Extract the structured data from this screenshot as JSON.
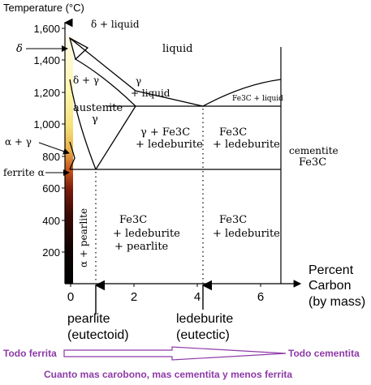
{
  "diagram": {
    "y_axis_title": "Temperature (°C)",
    "x_axis_title_lines": [
      "Percent",
      "Carbon",
      "(by mass)"
    ],
    "y_ticks": [
      "1,600",
      "1,400",
      "1,200",
      "1,000",
      "800",
      "600",
      "400",
      "200"
    ],
    "x_ticks": [
      "0",
      "2",
      "4",
      "6"
    ],
    "left_labels": {
      "delta": "δ",
      "alpha_gamma": "α + γ",
      "ferrite": "ferrite α"
    },
    "phase_labels": {
      "delta_liquid": "δ + liquid",
      "delta_gamma": "δ + γ",
      "liquid": "liquid",
      "gamma_liquid_1": "γ",
      "gamma_liquid_2": "+ liquid",
      "fe3c_liquid": "Fe3C + liquid",
      "austenite_1": "austenite",
      "austenite_2": "γ",
      "gamma_fe3c_1": "γ + Fe3C",
      "gamma_fe3c_2": "+ ledeburite",
      "fe3c_ledeb_1": "Fe3C",
      "fe3c_ledeb_2": "+ ledeburite",
      "cementite_1": "cementite",
      "cementite_2": "Fe3C",
      "alpha_pearlite": "α + pearlite",
      "fe3c_ledeb_pearlite_1": "Fe3C",
      "fe3c_ledeb_pearlite_2": "+ ledeburite",
      "fe3c_ledeb_pearlite_3": "+ pearlite",
      "fe3c_ledeb_low_1": "Fe3C",
      "fe3c_ledeb_low_2": "+ ledeburite"
    },
    "points": {
      "pearlite": "pearlite",
      "pearlite_sub": "(eutectoid)",
      "ledeburite": "ledeburite",
      "ledeburite_sub": "(eutectic)"
    }
  },
  "annotation": {
    "left_label": "Todo ferrita",
    "right_label": "Todo cementita",
    "caption": "Cuanto mas carobono, mas cementita y menos ferrita"
  }
}
